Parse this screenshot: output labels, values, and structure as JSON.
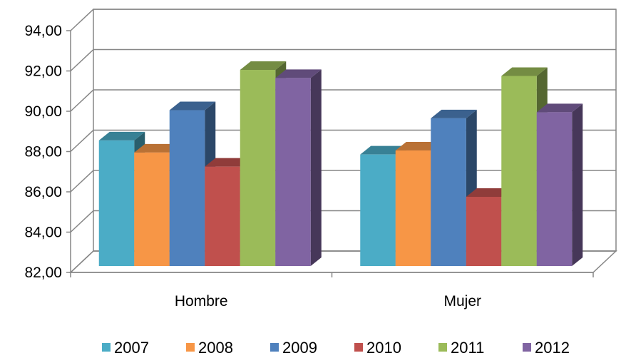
{
  "chart_data": {
    "type": "bar",
    "style": "3d-clustered-column",
    "title": "",
    "xlabel": "",
    "ylabel": "",
    "categories": [
      "Hombre",
      "Mujer"
    ],
    "ylim": [
      82,
      94
    ],
    "yticks": [
      "82,00",
      "84,00",
      "86,00",
      "88,00",
      "90,00",
      "92,00",
      "94,00"
    ],
    "grid": true,
    "legend": "bottom",
    "series": [
      {
        "name": "2007",
        "color": "#4BACC6",
        "values": [
          88.8,
          88.1
        ]
      },
      {
        "name": "2008",
        "color": "#F79646",
        "values": [
          88.2,
          88.3
        ]
      },
      {
        "name": "2009",
        "color": "#4F81BD",
        "values": [
          90.3,
          89.9
        ]
      },
      {
        "name": "2010",
        "color": "#C0504D",
        "values": [
          87.5,
          86.0
        ]
      },
      {
        "name": "2011",
        "color": "#9BBB59",
        "values": [
          92.3,
          92.0
        ]
      },
      {
        "name": "2012",
        "color": "#8064A2",
        "values": [
          91.9,
          90.2
        ]
      }
    ]
  }
}
